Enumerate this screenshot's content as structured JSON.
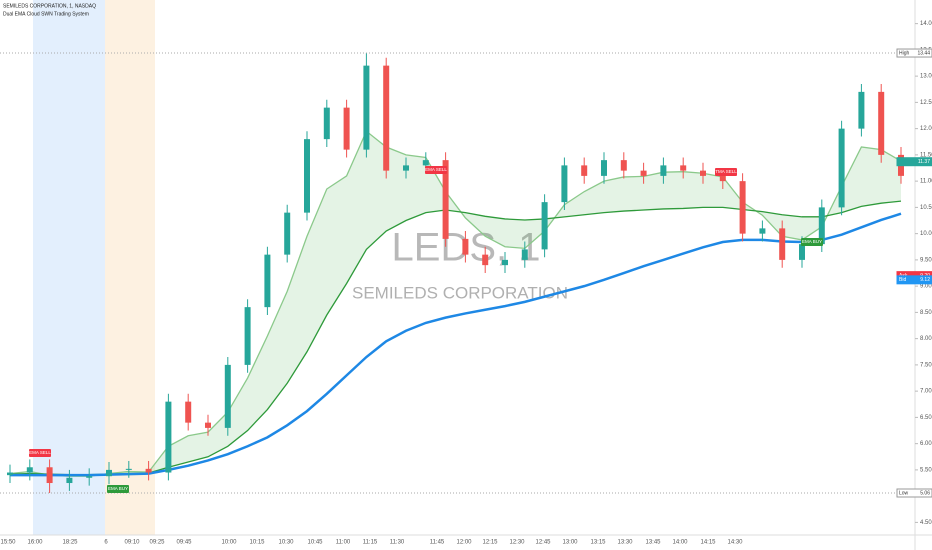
{
  "chart_data": {
    "type": "candlestick",
    "title": "SEMILEDS CORPORATION, 1, NASDAQ",
    "subtitle": "Dual EMA Cloud SWN Trading System",
    "watermark": "LEDS, 1",
    "watermark_subtitle": "SEMILEDS CORPORATION",
    "up_color": "#26a69a",
    "down_color": "#ef5350",
    "open": [
      5.4,
      5.45,
      5.55,
      5.25,
      5.35,
      5.38,
      5.5,
      5.52,
      5.45,
      6.8,
      6.4,
      6.3,
      7.5,
      8.6,
      9.6,
      10.4,
      11.8,
      12.4,
      11.6,
      13.2,
      11.2,
      11.3,
      11.4,
      9.9,
      9.6,
      9.4,
      9.5,
      9.7,
      10.6,
      11.3,
      11.1,
      11.4,
      11.2,
      11.1,
      11.3,
      11.2,
      11.1,
      11.0,
      10.0,
      10.1,
      9.5,
      9.8,
      10.5,
      12.0,
      12.7,
      11.5
    ],
    "high": [
      5.6,
      5.7,
      5.7,
      5.5,
      5.53,
      5.65,
      5.67,
      5.67,
      6.95,
      6.95,
      6.55,
      7.65,
      8.75,
      9.75,
      10.55,
      11.95,
      12.55,
      12.55,
      13.44,
      13.35,
      11.45,
      11.55,
      11.55,
      10.05,
      9.75,
      9.65,
      9.85,
      10.75,
      11.45,
      11.45,
      11.55,
      11.55,
      11.35,
      11.45,
      11.45,
      11.35,
      11.25,
      11.15,
      10.25,
      10.25,
      9.95,
      10.65,
      12.15,
      12.85,
      12.85,
      11.65
    ],
    "low": [
      5.25,
      5.3,
      5.06,
      5.1,
      5.2,
      5.23,
      5.35,
      5.3,
      5.3,
      6.25,
      6.15,
      6.15,
      7.35,
      8.45,
      9.45,
      10.25,
      11.65,
      11.45,
      11.45,
      11.05,
      11.05,
      11.15,
      9.75,
      9.45,
      9.25,
      9.25,
      9.35,
      9.55,
      10.45,
      10.95,
      10.95,
      11.05,
      10.95,
      10.95,
      11.05,
      10.95,
      10.85,
      9.85,
      9.85,
      9.35,
      9.35,
      9.65,
      10.35,
      11.85,
      11.35,
      10.95
    ],
    "close": [
      5.45,
      5.55,
      5.25,
      5.35,
      5.38,
      5.5,
      5.52,
      5.45,
      6.8,
      6.4,
      6.3,
      7.5,
      8.6,
      9.6,
      10.4,
      11.8,
      12.4,
      11.6,
      13.2,
      11.2,
      11.3,
      11.4,
      9.9,
      9.6,
      9.4,
      9.5,
      9.7,
      10.6,
      11.3,
      11.1,
      11.4,
      11.2,
      11.1,
      11.3,
      11.2,
      11.1,
      11.0,
      10.0,
      10.1,
      9.5,
      9.8,
      10.5,
      12.0,
      12.7,
      11.5,
      11.1
    ],
    "series": [
      {
        "color": "#8bc98b",
        "values": [
          5.43,
          5.47,
          5.4,
          5.38,
          5.38,
          5.43,
          5.47,
          5.46,
          5.95,
          6.15,
          6.22,
          6.6,
          7.25,
          8.05,
          8.9,
          9.95,
          10.85,
          11.1,
          11.95,
          11.65,
          11.5,
          11.45,
          10.8,
          10.3,
          9.95,
          9.75,
          9.72,
          10.05,
          10.55,
          10.8,
          11.0,
          11.08,
          11.09,
          11.17,
          11.18,
          11.15,
          11.08,
          10.6,
          10.35,
          9.95,
          9.88,
          10.13,
          10.9,
          11.65,
          11.6,
          11.38
        ]
      },
      {
        "color": "#2e9a3a",
        "values": [
          5.42,
          5.43,
          5.42,
          5.41,
          5.41,
          5.42,
          5.43,
          5.44,
          5.55,
          5.65,
          5.75,
          5.95,
          6.25,
          6.65,
          7.15,
          7.75,
          8.45,
          9.05,
          9.7,
          10.05,
          10.25,
          10.4,
          10.45,
          10.4,
          10.33,
          10.28,
          10.26,
          10.28,
          10.32,
          10.36,
          10.4,
          10.43,
          10.45,
          10.47,
          10.48,
          10.5,
          10.5,
          10.46,
          10.42,
          10.36,
          10.32,
          10.32,
          10.4,
          10.52,
          10.58,
          10.62
        ]
      },
      {
        "color": "#1e88e5",
        "values": [
          5.4,
          5.4,
          5.4,
          5.4,
          5.4,
          5.41,
          5.42,
          5.43,
          5.5,
          5.58,
          5.68,
          5.8,
          5.95,
          6.12,
          6.35,
          6.62,
          6.95,
          7.3,
          7.65,
          7.95,
          8.15,
          8.3,
          8.4,
          8.48,
          8.55,
          8.62,
          8.7,
          8.8,
          8.9,
          9.0,
          9.12,
          9.25,
          9.38,
          9.5,
          9.62,
          9.74,
          9.84,
          9.88,
          9.88,
          9.85,
          9.84,
          9.88,
          9.98,
          10.12,
          10.26,
          10.38
        ]
      }
    ],
    "x_labels": [
      "15:50",
      "16:00",
      "18:25",
      "6",
      "09:10",
      "09:25",
      "09:45",
      "10:00",
      "10:15",
      "10:30",
      "10:45",
      "11:00",
      "11:15",
      "11:30",
      "11:45",
      "12:00",
      "12:15",
      "12:30",
      "12:45",
      "13:00",
      "13:15",
      "13:30",
      "13:45",
      "14:00",
      "14:15",
      "14:30"
    ],
    "ylim": [
      4.26,
      14.45
    ],
    "yticks": [
      {
        "value": 4.5,
        "label": "4.50"
      },
      {
        "value": 5,
        "label": "5.00"
      },
      {
        "value": 5.5,
        "label": "5.50"
      },
      {
        "value": 6,
        "label": "6.00"
      },
      {
        "value": 6.5,
        "label": "6.50"
      },
      {
        "value": 7,
        "label": "7.00"
      },
      {
        "value": 7.5,
        "label": "7.50"
      },
      {
        "value": 8,
        "label": "8.00"
      },
      {
        "value": 8.5,
        "label": "8.50"
      },
      {
        "value": 9,
        "label": "9.00"
      },
      {
        "value": 9.5,
        "label": "9.50"
      },
      {
        "value": 10,
        "label": "10.00"
      },
      {
        "value": 10.5,
        "label": "10.50"
      },
      {
        "value": 11,
        "label": "11.00"
      },
      {
        "value": 11.5,
        "label": "11.50"
      },
      {
        "value": 12,
        "label": "12.00"
      },
      {
        "value": 12.5,
        "label": "12.50"
      },
      {
        "value": 13,
        "label": "13.00"
      },
      {
        "value": 13.5,
        "label": "13.50"
      },
      {
        "value": 14,
        "label": "14.00"
      }
    ],
    "price_tags": [
      {
        "name": "High",
        "value": 13.44,
        "color": "#ffffff"
      },
      {
        "name": "Low",
        "value": 5.06,
        "color": "#ffffff"
      },
      {
        "value": 11.37,
        "color": "#26a69a"
      },
      {
        "name": "Ask",
        "value": 9.2,
        "label": "9.20",
        "color": "#f23645"
      },
      {
        "name": "Bid",
        "value": 9.12,
        "color": "#2196f3"
      }
    ],
    "signals": [
      {
        "text": "EMA SELL",
        "color": "#f23645"
      },
      {
        "text": "EMA BUY",
        "color": "#2e9a3a"
      },
      {
        "text": "EMA SELL",
        "color": "#f23645"
      },
      {
        "text": "TMA SELL",
        "color": "#f23645"
      },
      {
        "text": "EMA BUY",
        "color": "#2e9a3a"
      }
    ]
  }
}
